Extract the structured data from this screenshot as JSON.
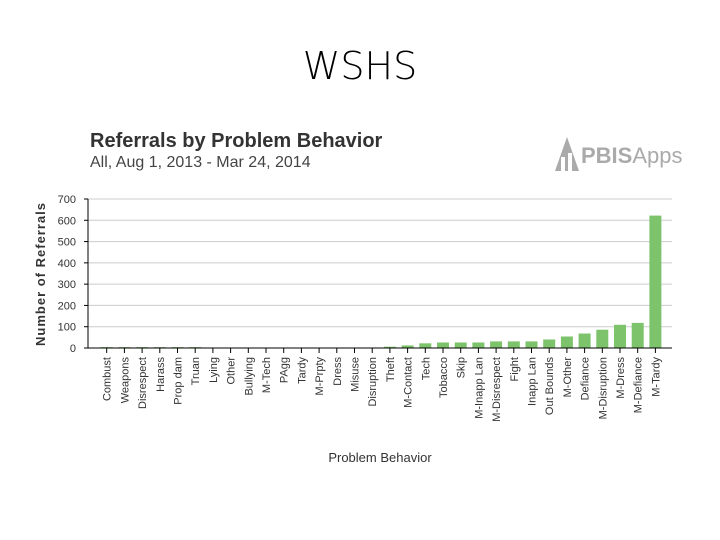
{
  "slide": {
    "title": "WSHS"
  },
  "logo": {
    "text": "PBISApps"
  },
  "chart_data": {
    "type": "bar",
    "title": "Referrals by Problem Behavior",
    "subtitle": "All, Aug 1, 2013 - Mar 24, 2014",
    "xlabel": "Problem Behavior",
    "ylabel": "Number of Referrals",
    "ylim": [
      0,
      700
    ],
    "yticks": [
      0,
      100,
      200,
      300,
      400,
      500,
      600,
      700
    ],
    "grid": true,
    "bar_color": "#7dc36b",
    "categories": [
      "Combust",
      "Weapons",
      "Disrespect",
      "Harass",
      "Prop dam",
      "Truan",
      "Lying",
      "Other",
      "Bullying",
      "M-Tech",
      "PAgg",
      "Tardy",
      "M-Prpty",
      "Dress",
      "Misuse",
      "Disruption",
      "Theft",
      "M-Contact",
      "Tech",
      "Tobacco",
      "Skip",
      "M-Inapp Lan",
      "M-Disrespect",
      "Fight",
      "Inapp Lan",
      "Out Bounds",
      "M-Other",
      "Defiance",
      "M-Disruption",
      "M-Dress",
      "M-Defiance",
      "M-Tardy"
    ],
    "values": [
      4,
      4,
      4,
      4,
      4,
      4,
      2,
      2,
      2,
      2,
      2,
      2,
      2,
      2,
      2,
      2,
      6,
      12,
      22,
      26,
      26,
      26,
      31,
      31,
      31,
      40,
      54,
      68,
      86,
      109,
      118,
      622
    ]
  }
}
